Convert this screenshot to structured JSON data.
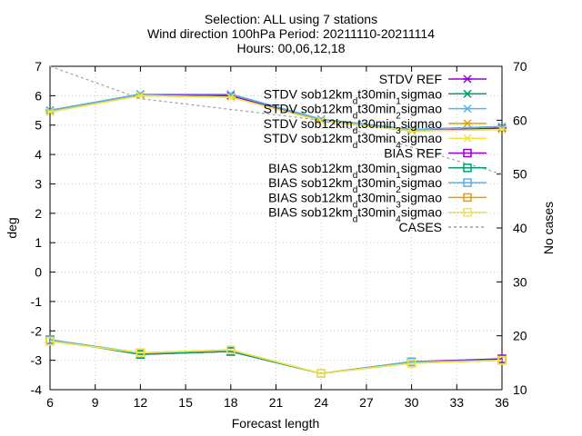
{
  "title_lines": [
    "Selection: ALL using      7 stations",
    "Wind direction 100hPa   Period: 20211110-20211114",
    "Hours: 00,06,12,18"
  ],
  "chart_data": {
    "type": "line",
    "xlabel": "Forecast length",
    "ylabel": "deg",
    "y2label": "No cases",
    "xlim": [
      6,
      36
    ],
    "ylim": [
      -4,
      7
    ],
    "y2lim": [
      10,
      70
    ],
    "x_ticks": [
      "6",
      "9",
      "12",
      "15",
      "18",
      "21",
      "24",
      "27",
      "30",
      "33",
      "36"
    ],
    "y_ticks": [
      "-4",
      "-3",
      "-2",
      "-1",
      "0",
      "1",
      "2",
      "3",
      "4",
      "5",
      "6",
      "7"
    ],
    "y2_ticks": [
      "10",
      "20",
      "30",
      "40",
      "50",
      "60",
      "70"
    ],
    "grid": true,
    "legend_position": "top-right",
    "series": [
      {
        "name": "STDV REF",
        "axis": "y",
        "color": "#9400d3",
        "marker": "x",
        "dash": false,
        "x": [
          6,
          12,
          18,
          24,
          30,
          36
        ],
        "y": [
          5.5,
          6.05,
          6.0,
          5.15,
          4.8,
          4.9
        ]
      },
      {
        "name": "STDV sob12km_d t30min_1 sigmao",
        "axis": "y",
        "color": "#009e73",
        "marker": "x",
        "dash": false,
        "x": [
          6,
          12,
          18,
          24,
          30,
          36
        ],
        "y": [
          5.5,
          6.05,
          6.05,
          5.2,
          4.85,
          4.95
        ]
      },
      {
        "name": "STDV sob12km_d t30min_2 sigmao",
        "axis": "y",
        "color": "#56b4e9",
        "marker": "x",
        "dash": false,
        "x": [
          6,
          12,
          18,
          24,
          30,
          36
        ],
        "y": [
          5.5,
          6.05,
          6.05,
          5.2,
          4.85,
          4.95
        ]
      },
      {
        "name": "STDV sob12km_d t30min_3 sigmao",
        "axis": "y",
        "color": "#e69f00",
        "marker": "x",
        "dash": false,
        "x": [
          6,
          12,
          18,
          24,
          30,
          36
        ],
        "y": [
          5.45,
          6.0,
          5.95,
          5.15,
          4.8,
          4.85
        ]
      },
      {
        "name": "STDV sob12km_d t30min_4 sigmao",
        "axis": "y",
        "color": "#f0e442",
        "marker": "x",
        "dash": false,
        "x": [
          6,
          12,
          18,
          24,
          30,
          36
        ],
        "y": [
          5.45,
          6.0,
          5.95,
          5.15,
          4.8,
          4.85
        ]
      },
      {
        "name": "BIAS REF",
        "axis": "y",
        "color": "#9400d3",
        "marker": "square",
        "dash": false,
        "x": [
          6,
          12,
          18,
          24,
          30,
          36
        ],
        "y": [
          -2.3,
          -2.8,
          -2.7,
          -3.45,
          -3.05,
          -2.95
        ]
      },
      {
        "name": "BIAS sob12km_d t30min_1 sigmao",
        "axis": "y",
        "color": "#009e73",
        "marker": "square",
        "dash": false,
        "x": [
          6,
          12,
          18,
          24,
          30,
          36
        ],
        "y": [
          -2.3,
          -2.8,
          -2.7,
          -3.45,
          -3.05,
          -3.0
        ]
      },
      {
        "name": "BIAS sob12km_d t30min_2 sigmao",
        "axis": "y",
        "color": "#56b4e9",
        "marker": "square",
        "dash": false,
        "x": [
          6,
          12,
          18,
          24,
          30,
          36
        ],
        "y": [
          -2.3,
          -2.75,
          -2.65,
          -3.45,
          -3.05,
          -3.0
        ]
      },
      {
        "name": "BIAS sob12km_d t30min_3 sigmao",
        "axis": "y",
        "color": "#e69f00",
        "marker": "square",
        "dash": false,
        "x": [
          6,
          12,
          18,
          24,
          30,
          36
        ],
        "y": [
          -2.35,
          -2.75,
          -2.65,
          -3.45,
          -3.1,
          -3.0
        ]
      },
      {
        "name": "BIAS sob12km_d t30min_4 sigmao",
        "axis": "y",
        "color": "#f0e442",
        "marker": "square",
        "dash": false,
        "x": [
          6,
          12,
          18,
          24,
          30,
          36
        ],
        "y": [
          -2.35,
          -2.75,
          -2.65,
          -3.45,
          -3.1,
          -3.0
        ]
      },
      {
        "name": "CASES",
        "axis": "y2",
        "color": "#a0a0a0",
        "marker": "none",
        "dash": true,
        "x": [
          6,
          12,
          18,
          24,
          30,
          36
        ],
        "y": [
          70,
          64,
          62,
          60,
          55,
          50
        ]
      }
    ],
    "legend_items": [
      {
        "prefix": "STDV REF",
        "sub": "",
        "mid": "",
        "sub2": "",
        "suffix": ""
      },
      {
        "prefix": "STDV sob12km",
        "sub": "d",
        "mid": "t30min",
        "sub2": "1",
        "suffix": "sigmao"
      },
      {
        "prefix": "STDV sob12km",
        "sub": "d",
        "mid": "t30min",
        "sub2": "2",
        "suffix": "sigmao"
      },
      {
        "prefix": "STDV sob12km",
        "sub": "d",
        "mid": "t30min",
        "sub2": "3",
        "suffix": "sigmao"
      },
      {
        "prefix": "STDV sob12km",
        "sub": "d",
        "mid": "t30min",
        "sub2": "4",
        "suffix": "sigmao"
      },
      {
        "prefix": "BIAS REF",
        "sub": "",
        "mid": "",
        "sub2": "",
        "suffix": ""
      },
      {
        "prefix": "BIAS sob12km",
        "sub": "d",
        "mid": "t30min",
        "sub2": "1",
        "suffix": "sigmao"
      },
      {
        "prefix": "BIAS sob12km",
        "sub": "d",
        "mid": "t30min",
        "sub2": "2",
        "suffix": "sigmao"
      },
      {
        "prefix": "BIAS sob12km",
        "sub": "d",
        "mid": "t30min",
        "sub2": "3",
        "suffix": "sigmao"
      },
      {
        "prefix": "BIAS sob12km",
        "sub": "d",
        "mid": "t30min",
        "sub2": "4",
        "suffix": "sigmao"
      },
      {
        "prefix": "CASES",
        "sub": "",
        "mid": "",
        "sub2": "",
        "suffix": ""
      }
    ]
  }
}
